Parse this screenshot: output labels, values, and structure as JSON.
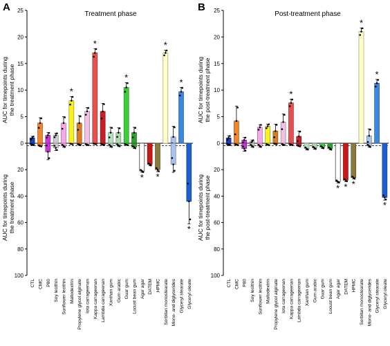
{
  "figure": {
    "ylabel_top": [
      "AUC for timepoints during",
      "the treatment phase"
    ],
    "ylabel_top_b": [
      "AUC for timepoints during",
      "the post-treatment phase"
    ],
    "ylabel_bottom": [
      "AUC for timepoints during",
      "the treatment phase"
    ],
    "ylabel_bottom_b": [
      "AUC for timepoints during",
      "the post-treatment phase"
    ],
    "colors": [
      "#1a3fbf",
      "#f0862a",
      "#c838d8",
      "#cccccc",
      "#f6a8e8",
      "#f8f020",
      "#d97b22",
      "#f2c0e2",
      "#e85050",
      "#c81e24",
      "#b8e0c0",
      "#b0d8b0",
      "#3ad03a",
      "#30a030",
      "#ffffff",
      "#c81818",
      "#8b7a3c",
      "#ffffc8",
      "#a8c4ec",
      "#3a88e0",
      "#1a60d0"
    ]
  },
  "chart_data": [
    {
      "type": "bar",
      "panel": "A",
      "title": "Treatment phase",
      "categories": [
        "CTL",
        "CMC",
        "P80",
        "Soy lecithin",
        "Sunflower lecithin",
        "Maltodextrin",
        "Propylene glycol alginate",
        "Iota carrageenan",
        "Kappa carrageenan",
        "Lambda carrageenan",
        "Xanthan gum",
        "Gum arabic",
        "Guar gum",
        "Locust bean gum",
        "Agar agar",
        "DATEM",
        "HPMC",
        "Sorbitan monostearate",
        "Mono- and diglycerides",
        "Glyceryl stearate",
        "Glyceryl oleate"
      ],
      "top_values": [
        1.0,
        3.8,
        1.5,
        1.5,
        3.8,
        8.0,
        3.8,
        6.0,
        17.0,
        6.0,
        2.0,
        2.0,
        10.5,
        2.0,
        0,
        0,
        0,
        17.0,
        1.2,
        9.7,
        0
      ],
      "top_errors": [
        0.3,
        1.0,
        0.5,
        0.4,
        1.2,
        0.8,
        1.4,
        0.7,
        0.8,
        1.5,
        1.0,
        0.9,
        0.9,
        1.0,
        0,
        0,
        0,
        0.5,
        2.0,
        0.8,
        0
      ],
      "bottom_values": [
        1.0,
        2.0,
        6.5,
        3.5,
        2.0,
        0.5,
        1.0,
        1.0,
        0.5,
        1.0,
        2.0,
        1.5,
        1.0,
        3.0,
        21.0,
        16.0,
        20.0,
        0,
        16.0,
        0,
        44.0
      ],
      "bottom_errors": [
        0.5,
        0.5,
        6.0,
        2.0,
        1.0,
        0.3,
        0.5,
        0.5,
        0.3,
        0.5,
        1.0,
        1.0,
        0.5,
        1.0,
        1.0,
        1.0,
        1.5,
        0,
        6.0,
        0,
        17.0
      ],
      "top_significant": [
        8,
        5,
        12,
        17,
        19
      ],
      "bottom_significant": [
        14,
        16,
        20
      ],
      "ylim_top": [
        0,
        25
      ],
      "ylim_bottom": [
        0,
        100
      ],
      "yticks_top": [
        0,
        5,
        10,
        15,
        20,
        25
      ],
      "yticks_bottom": [
        20,
        40,
        60,
        80,
        100
      ]
    },
    {
      "type": "bar",
      "panel": "B",
      "title": "Post-treatment phase",
      "categories": [
        "CTL",
        "CMC",
        "P80",
        "Soy lecithin",
        "Sunflower lecithin",
        "Maltodextrin",
        "Propylene glycol alginate",
        "Iota carrageenan",
        "Kappa carrageenan",
        "Lambda carrageenan",
        "Xanthan gum",
        "Gum arabic",
        "Guar gum",
        "Locust bean gum",
        "Agar agar",
        "DATEM",
        "HPMC",
        "Sorbitan monostearate",
        "Mono- and diglycerides",
        "Glyceryl stearate",
        "Glyceryl oleate"
      ],
      "top_values": [
        1.0,
        4.2,
        0.6,
        0.3,
        3.0,
        3.2,
        2.3,
        4.0,
        7.6,
        1.3,
        0,
        0,
        0,
        0,
        0,
        0,
        0,
        21.0,
        1.4,
        11.3,
        0
      ],
      "top_errors": [
        0.4,
        2.8,
        0.5,
        0.3,
        0.5,
        0.4,
        1.3,
        1.5,
        0.7,
        1.0,
        0,
        0,
        0,
        0,
        0,
        0,
        0,
        0.7,
        1.3,
        0.7,
        0
      ],
      "bottom_values": [
        1.0,
        1.0,
        4.0,
        2.0,
        2.0,
        1.0,
        0.5,
        1.0,
        1.0,
        2.0,
        4.0,
        3.5,
        3.0,
        4.0,
        29.0,
        28.0,
        26.0,
        0,
        2.0,
        0,
        41.0
      ],
      "bottom_errors": [
        0.5,
        0.5,
        2.0,
        1.0,
        1.0,
        0.5,
        0.3,
        0.5,
        0.5,
        0.5,
        1.0,
        1.0,
        1.0,
        1.0,
        1.0,
        1.0,
        1.0,
        0,
        1.0,
        0,
        2.0
      ],
      "top_significant": [
        8,
        17,
        19
      ],
      "bottom_significant": [
        14,
        15,
        16,
        20
      ],
      "ylim_top": [
        0,
        25
      ],
      "ylim_bottom": [
        0,
        100
      ],
      "yticks_top": [
        0,
        5,
        10,
        15,
        20,
        25
      ],
      "yticks_bottom": [
        20,
        40,
        60,
        80,
        100
      ]
    }
  ]
}
